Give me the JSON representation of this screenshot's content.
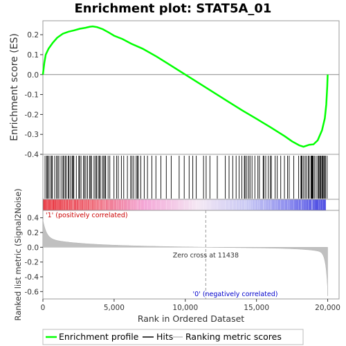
{
  "chart_data": {
    "type": "line",
    "title": "Enrichment plot: STAT5A_01",
    "es_panel": {
      "ylabel": "Enrichment score (ES)",
      "ylim": [
        -0.4,
        0.27
      ],
      "yticks": [
        0.2,
        0.1,
        0.0,
        -0.1,
        -0.2,
        -0.3,
        -0.4
      ],
      "ytick_labels": [
        "0.2",
        "0.1",
        "0.0",
        "-0.1",
        "-0.2",
        "-0.3",
        "-0.4"
      ],
      "series": [
        {
          "name": "Enrichment profile",
          "color": "#00ff00",
          "x": [
            0,
            100,
            200,
            400,
            700,
            1000,
            1400,
            1800,
            2200,
            2600,
            3000,
            3300,
            3500,
            3800,
            4200,
            4600,
            5000,
            5600,
            6200,
            7000,
            8000,
            9000,
            10000,
            11000,
            12000,
            13000,
            14000,
            15000,
            16000,
            17000,
            17500,
            18000,
            18300,
            18700,
            19000,
            19300,
            19600,
            19800,
            19900,
            19970,
            20000
          ],
          "y": [
            0.0,
            0.06,
            0.1,
            0.13,
            0.16,
            0.185,
            0.205,
            0.215,
            0.222,
            0.23,
            0.235,
            0.24,
            0.242,
            0.238,
            0.228,
            0.212,
            0.195,
            0.178,
            0.155,
            0.13,
            0.09,
            0.045,
            0.0,
            -0.045,
            -0.09,
            -0.135,
            -0.18,
            -0.222,
            -0.265,
            -0.31,
            -0.335,
            -0.355,
            -0.362,
            -0.352,
            -0.35,
            -0.33,
            -0.28,
            -0.22,
            -0.15,
            -0.06,
            0.0
          ]
        }
      ]
    },
    "hits_panel": {
      "hits_color": "#000000",
      "hit_positions_note": "",
      "gradient_colors": [
        "#e0202a",
        "#ffffff",
        "#2020e0"
      ]
    },
    "metric_panel": {
      "ylabel": "Ranked list metric (Signal2Noise)",
      "ylim": [
        -0.7,
        0.5
      ],
      "yticks": [
        0.4,
        0.2,
        0.0,
        -0.2,
        -0.4,
        -0.6
      ],
      "ytick_labels": [
        "0.4",
        "0.2",
        "0.0",
        "-0.2",
        "-0.4",
        "-0.6"
      ],
      "fill_color": "#c0c0c0",
      "zero_cross": 11438,
      "zero_cross_label": "Zero cross at 11438",
      "pos_label": "'1' (positively correlated)",
      "neg_label": "'0' (negatively correlated)",
      "pos_label_color": "#cc0000",
      "neg_label_color": "#0000cc"
    },
    "xaxis": {
      "xlabel": "Rank in Ordered Dataset",
      "xlim": [
        0,
        20800
      ],
      "xticks": [
        0,
        5000,
        10000,
        15000,
        20000
      ],
      "xtick_labels": [
        "0",
        "5,000",
        "10,000",
        "15,000",
        "20,000"
      ]
    },
    "legend": {
      "placement": "bottom",
      "entries": [
        {
          "label": "Enrichment profile",
          "color": "#00ff00"
        },
        {
          "label": "Hits",
          "color": "#000000"
        },
        {
          "label": "Ranking metric scores",
          "color": "#c0c0c0"
        }
      ]
    }
  }
}
